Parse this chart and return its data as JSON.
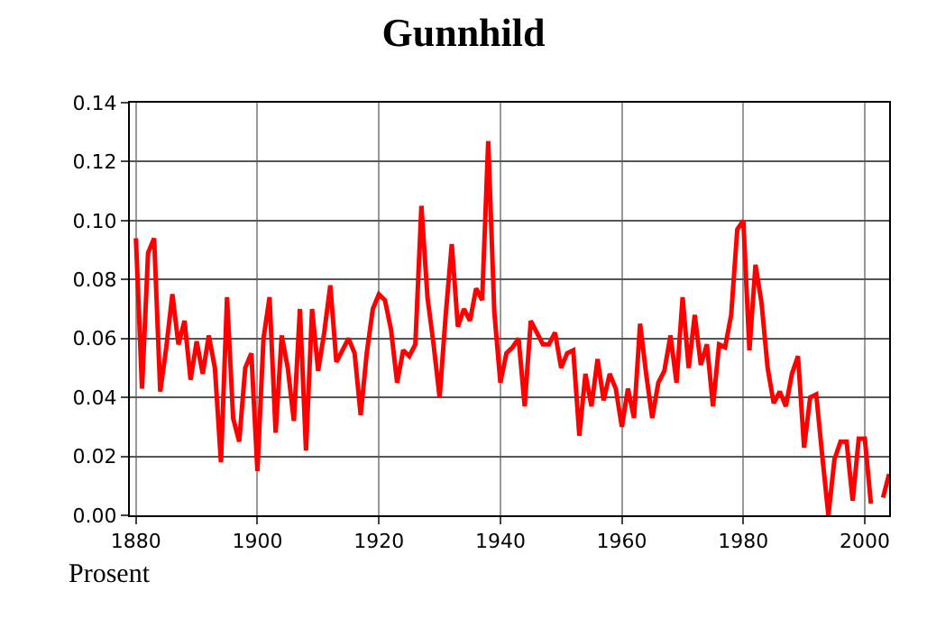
{
  "chart_data": {
    "type": "line",
    "title": "Gunnhild",
    "ylabel": "Prosent",
    "x": [
      1880,
      1881,
      1882,
      1883,
      1884,
      1885,
      1886,
      1887,
      1888,
      1889,
      1890,
      1891,
      1892,
      1893,
      1894,
      1895,
      1896,
      1897,
      1898,
      1899,
      1900,
      1901,
      1902,
      1903,
      1904,
      1905,
      1906,
      1907,
      1908,
      1909,
      1910,
      1911,
      1912,
      1913,
      1914,
      1915,
      1916,
      1917,
      1918,
      1919,
      1920,
      1921,
      1922,
      1923,
      1924,
      1925,
      1926,
      1927,
      1928,
      1929,
      1930,
      1931,
      1932,
      1933,
      1934,
      1935,
      1936,
      1937,
      1938,
      1939,
      1940,
      1941,
      1942,
      1943,
      1944,
      1945,
      1946,
      1947,
      1948,
      1949,
      1950,
      1951,
      1952,
      1953,
      1954,
      1955,
      1956,
      1957,
      1958,
      1959,
      1960,
      1961,
      1962,
      1963,
      1964,
      1965,
      1966,
      1967,
      1968,
      1969,
      1970,
      1971,
      1972,
      1973,
      1974,
      1975,
      1976,
      1977,
      1978,
      1979,
      1980,
      1981,
      1982,
      1983,
      1984,
      1985,
      1986,
      1987,
      1988,
      1989,
      1990,
      1991,
      1992,
      1993,
      1994,
      1995,
      1996,
      1997,
      1998,
      1999,
      2000,
      2001,
      2002,
      2003,
      2004
    ],
    "series": [
      {
        "color": "#ff0000",
        "values": [
          0.094,
          0.043,
          0.089,
          0.094,
          0.042,
          0.057,
          0.075,
          0.058,
          0.066,
          0.046,
          0.059,
          0.048,
          0.061,
          0.05,
          0.018,
          0.074,
          0.033,
          0.025,
          0.05,
          0.055,
          0.015,
          0.06,
          0.074,
          0.028,
          0.061,
          0.05,
          0.032,
          0.07,
          0.022,
          0.07,
          0.049,
          0.062,
          0.078,
          0.052,
          0.056,
          0.06,
          0.055,
          0.034,
          0.055,
          0.07,
          0.075,
          0.073,
          0.063,
          0.045,
          0.056,
          0.054,
          0.058,
          0.105,
          0.074,
          0.058,
          0.04,
          0.068,
          0.092,
          0.064,
          0.07,
          0.066,
          0.077,
          0.073,
          0.127,
          0.069,
          0.045,
          0.055,
          0.057,
          0.06,
          0.037,
          0.066,
          0.062,
          0.058,
          0.058,
          0.062,
          0.05,
          0.055,
          0.056,
          0.027,
          0.048,
          0.037,
          0.053,
          0.039,
          0.048,
          0.043,
          0.03,
          0.043,
          0.033,
          0.065,
          0.048,
          0.033,
          0.045,
          0.049,
          0.061,
          0.045,
          0.074,
          0.05,
          0.068,
          0.051,
          0.058,
          0.037,
          0.058,
          0.057,
          0.068,
          0.097,
          0.1,
          0.056,
          0.085,
          0.072,
          0.05,
          0.038,
          0.042,
          0.037,
          0.048,
          0.054,
          0.023,
          0.04,
          0.041,
          0.02,
          0.0,
          0.019,
          0.025,
          0.025,
          0.005,
          0.026,
          0.026,
          0.004,
          null,
          0.006,
          0.014
        ]
      }
    ],
    "xlim": [
      1879,
      2004
    ],
    "xticks": [
      1880,
      1900,
      1920,
      1940,
      1960,
      1980,
      2000
    ],
    "ylim": [
      0,
      0.14
    ],
    "yticks": [
      {
        "value": 0,
        "label": "0.00"
      },
      {
        "value": 0.02,
        "label": "0.02"
      },
      {
        "value": 0.04,
        "label": "0.04"
      },
      {
        "value": 0.06,
        "label": "0.06"
      },
      {
        "value": 0.08,
        "label": "0.08"
      },
      {
        "value": 0.1,
        "label": "0.10"
      },
      {
        "value": 0.12,
        "label": "0.12"
      },
      {
        "value": 0.14,
        "label": "0.14"
      }
    ],
    "grid": true,
    "line_style": "solid",
    "marker": "none"
  }
}
